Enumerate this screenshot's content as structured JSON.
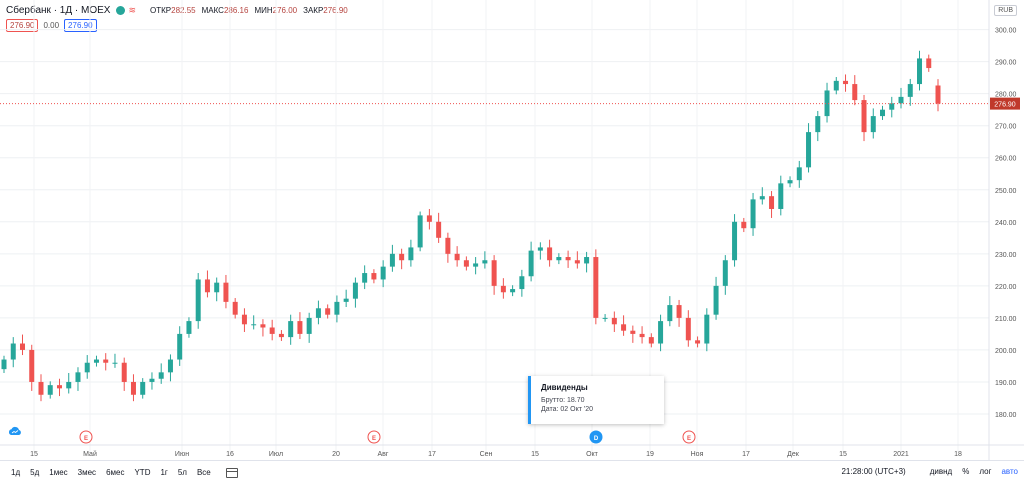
{
  "header": {
    "symbol": "Сбербанк · 1Д · MOEX",
    "ohlc": [
      {
        "label": "ОТКР",
        "value": "282.55"
      },
      {
        "label": "МАКС",
        "value": "286.16"
      },
      {
        "label": "МИН",
        "value": "276.00"
      },
      {
        "label": "ЗАКР",
        "value": "276.90"
      }
    ],
    "sell_price": "276.90",
    "spread": "0.00",
    "buy_price": "276.90"
  },
  "currency": "RUB",
  "tooltip": {
    "title": "Дивиденды",
    "gross": "Брутто: 18.70",
    "date": "Дата: 02 Окт '20"
  },
  "event_markers": [
    {
      "kind": "E",
      "x_label": "Апр-21"
    },
    {
      "kind": "E",
      "x_label": "Июл-30"
    },
    {
      "kind": "D",
      "x_label": "Окт-02"
    },
    {
      "kind": "E",
      "x_label": "Окт-29"
    }
  ],
  "bottom": {
    "periods": [
      "1д",
      "5д",
      "1мес",
      "3мес",
      "6мес",
      "YTD",
      "1г",
      "5л",
      "Все"
    ],
    "time": "21:28:00 (UTC+3)",
    "tools": [
      "дивнд",
      "%",
      "лог",
      "авто"
    ]
  },
  "colors": {
    "up": "#26a69a",
    "down": "#ef5350",
    "price_label_bg": "#c0392b",
    "dividend": "#2196f3"
  },
  "chart_data": {
    "type": "candlestick",
    "y_axis": {
      "min": 175,
      "max": 303,
      "ticks": [
        180,
        190,
        200,
        210,
        220,
        230,
        240,
        250,
        260,
        270,
        280,
        290,
        300
      ],
      "tick_labels": [
        "180.00",
        "190.00",
        "200.00",
        "210.00",
        "220.00",
        "230.00",
        "240.00",
        "250.00",
        "260.00",
        "270.00",
        "280.00",
        "290.00",
        "300.00"
      ]
    },
    "x_axis": {
      "tick_labels": [
        "15",
        "Май",
        "Июн",
        "16",
        "Июл",
        "20",
        "Авг",
        "17",
        "Сен",
        "15",
        "Окт",
        "19",
        "Ноя",
        "17",
        "Дек",
        "15",
        "2021",
        "18"
      ]
    },
    "last_price_label": "276.90",
    "grid": true,
    "closes": [
      197,
      202,
      200,
      190,
      186,
      189,
      188,
      190,
      193,
      196,
      197,
      196,
      196,
      190,
      186,
      190,
      191,
      193,
      197,
      205,
      209,
      222,
      218,
      221,
      215,
      211,
      208,
      208,
      207,
      205,
      204,
      209,
      205,
      210,
      213,
      211,
      215,
      216,
      221,
      224,
      222,
      226,
      230,
      228,
      232,
      242,
      240,
      235,
      230,
      228,
      226,
      227,
      228,
      220,
      218,
      219,
      223,
      231,
      232,
      228,
      229,
      228,
      227,
      229,
      210,
      210,
      208,
      206,
      205,
      204,
      202,
      209,
      214,
      210,
      203,
      202,
      211,
      220,
      228,
      240,
      238,
      247,
      248,
      244,
      252,
      253,
      257,
      268,
      273,
      281,
      284,
      283,
      278,
      268,
      273,
      275,
      277,
      279,
      283,
      291,
      288,
      276.9
    ]
  }
}
